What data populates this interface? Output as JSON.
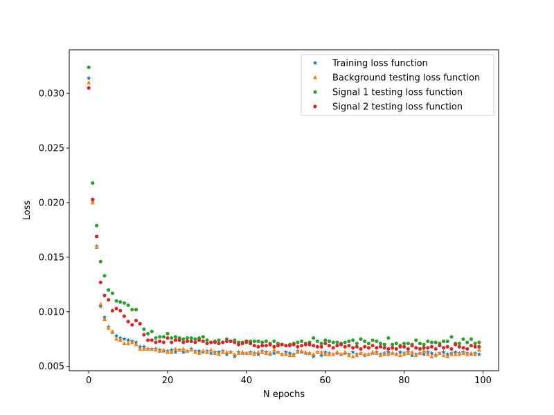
{
  "chart_data": {
    "type": "scatter",
    "xlabel": "N epochs",
    "ylabel": "Loss",
    "xlim": [
      -4.95,
      103.95
    ],
    "ylim": [
      0.0046,
      0.034
    ],
    "xticks": [
      0,
      20,
      40,
      60,
      80,
      100
    ],
    "xtick_labels": [
      "0",
      "20",
      "40",
      "60",
      "80",
      "100"
    ],
    "yticks": [
      0.005,
      0.01,
      0.015,
      0.02,
      0.025,
      0.03
    ],
    "ytick_labels": [
      "0.005",
      "0.010",
      "0.015",
      "0.020",
      "0.025",
      "0.030"
    ],
    "grid": false,
    "legend_position": "top-right",
    "x": [
      0,
      1,
      2,
      3,
      4,
      5,
      6,
      7,
      8,
      9,
      10,
      11,
      12,
      13,
      14,
      15,
      16,
      17,
      18,
      19,
      20,
      21,
      22,
      23,
      24,
      25,
      26,
      27,
      28,
      29,
      30,
      31,
      32,
      33,
      34,
      35,
      36,
      37,
      38,
      39,
      40,
      41,
      42,
      43,
      44,
      45,
      46,
      47,
      48,
      49,
      50,
      51,
      52,
      53,
      54,
      55,
      56,
      57,
      58,
      59,
      60,
      61,
      62,
      63,
      64,
      65,
      66,
      67,
      68,
      69,
      70,
      71,
      72,
      73,
      74,
      75,
      76,
      77,
      78,
      79,
      80,
      81,
      82,
      83,
      84,
      85,
      86,
      87,
      88,
      89,
      90,
      91,
      92,
      93,
      94,
      95,
      96,
      97,
      98,
      99
    ],
    "series": [
      {
        "name": "Training loss function",
        "marker": "star",
        "color": "#1f77b4",
        "values": [
          0.0314,
          0.0202,
          0.016,
          0.0105,
          0.0095,
          0.0086,
          0.0081,
          0.0078,
          0.0076,
          0.0075,
          0.0074,
          0.0073,
          0.0072,
          0.0068,
          0.0068,
          0.0066,
          0.0066,
          0.0066,
          0.0065,
          0.0064,
          0.0064,
          0.0065,
          0.0063,
          0.0065,
          0.0063,
          0.0064,
          0.0066,
          0.0064,
          0.0064,
          0.0063,
          0.0064,
          0.0062,
          0.0063,
          0.0063,
          0.0064,
          0.0061,
          0.0063,
          0.0059,
          0.0063,
          0.0062,
          0.0062,
          0.0063,
          0.0062,
          0.0061,
          0.0064,
          0.0063,
          0.0061,
          0.0062,
          0.0063,
          0.0061,
          0.0063,
          0.0062,
          0.0061,
          0.0064,
          0.0063,
          0.0062,
          0.0062,
          0.0059,
          0.0063,
          0.006,
          0.0063,
          0.0062,
          0.0061,
          0.0062,
          0.0061,
          0.0062,
          0.0061,
          0.0063,
          0.0061,
          0.0062,
          0.006,
          0.0061,
          0.0062,
          0.0063,
          0.0061,
          0.0062,
          0.0063,
          0.0062,
          0.0061,
          0.0063,
          0.0062,
          0.0063,
          0.006,
          0.0061,
          0.0062,
          0.0061,
          0.0063,
          0.0062,
          0.006,
          0.0062,
          0.0063,
          0.0061,
          0.0062,
          0.0063,
          0.0062,
          0.0063,
          0.0062,
          0.0061,
          0.0062,
          0.0061
        ]
      },
      {
        "name": "Background testing loss function",
        "marker": "triangle",
        "color": "#ff7f0e",
        "values": [
          0.031,
          0.02,
          0.0159,
          0.0107,
          0.0093,
          0.0085,
          0.0082,
          0.0075,
          0.0074,
          0.0071,
          0.0071,
          0.0072,
          0.007,
          0.0066,
          0.0066,
          0.0066,
          0.0066,
          0.0065,
          0.0064,
          0.0065,
          0.0063,
          0.0063,
          0.0066,
          0.0065,
          0.0066,
          0.0064,
          0.0065,
          0.0063,
          0.0062,
          0.0064,
          0.0063,
          0.0065,
          0.0062,
          0.0061,
          0.0063,
          0.0063,
          0.0063,
          0.0061,
          0.0062,
          0.0063,
          0.0062,
          0.0062,
          0.0061,
          0.0063,
          0.0063,
          0.0062,
          0.0062,
          0.0065,
          0.0063,
          0.0061,
          0.0061,
          0.006,
          0.006,
          0.0063,
          0.0064,
          0.0063,
          0.0062,
          0.0061,
          0.0063,
          0.0063,
          0.0061,
          0.0061,
          0.0061,
          0.0063,
          0.0061,
          0.0063,
          0.006,
          0.0059,
          0.006,
          0.0062,
          0.0061,
          0.0061,
          0.0063,
          0.0062,
          0.006,
          0.0061,
          0.0061,
          0.0062,
          0.0061,
          0.006,
          0.0061,
          0.0062,
          0.0063,
          0.006,
          0.0062,
          0.0064,
          0.0061,
          0.0059,
          0.0061,
          0.0062,
          0.006,
          0.0059,
          0.0061,
          0.0061,
          0.0061,
          0.0062,
          0.0061,
          0.0062,
          0.0061,
          0.0065
        ]
      },
      {
        "name": "Signal 1 testing loss function",
        "marker": "circle",
        "color": "#2ca02c",
        "values": [
          0.0324,
          0.0218,
          0.0179,
          0.0146,
          0.0133,
          0.012,
          0.0117,
          0.011,
          0.0109,
          0.0108,
          0.0106,
          0.0102,
          0.0102,
          0.0089,
          0.0084,
          0.008,
          0.0082,
          0.0076,
          0.0077,
          0.0077,
          0.008,
          0.0076,
          0.0077,
          0.0076,
          0.0075,
          0.0076,
          0.0076,
          0.0075,
          0.0076,
          0.0077,
          0.0074,
          0.0072,
          0.0073,
          0.0074,
          0.0072,
          0.0075,
          0.0073,
          0.0074,
          0.0072,
          0.0072,
          0.0072,
          0.0073,
          0.0073,
          0.0073,
          0.0072,
          0.0073,
          0.0071,
          0.0073,
          0.0071,
          0.007,
          0.0069,
          0.007,
          0.0071,
          0.0072,
          0.0073,
          0.0071,
          0.0072,
          0.0076,
          0.0073,
          0.0071,
          0.0074,
          0.0073,
          0.0072,
          0.0072,
          0.0071,
          0.0072,
          0.0073,
          0.0074,
          0.0071,
          0.0075,
          0.0073,
          0.0071,
          0.0074,
          0.0073,
          0.0071,
          0.007,
          0.0076,
          0.007,
          0.0071,
          0.0069,
          0.0071,
          0.0071,
          0.007,
          0.0074,
          0.0071,
          0.007,
          0.0073,
          0.0072,
          0.0072,
          0.0071,
          0.0073,
          0.0073,
          0.0077,
          0.0071,
          0.0071,
          0.0075,
          0.0072,
          0.0075,
          0.0071,
          0.0072
        ]
      },
      {
        "name": "Signal 2 testing loss function",
        "marker": "circle",
        "color": "#d62728",
        "values": [
          0.0305,
          0.0203,
          0.0169,
          0.0127,
          0.0115,
          0.0111,
          0.0101,
          0.0103,
          0.0101,
          0.0096,
          0.0091,
          0.0088,
          0.0092,
          0.0089,
          0.0079,
          0.0074,
          0.0074,
          0.0072,
          0.0073,
          0.0072,
          0.0076,
          0.0072,
          0.0074,
          0.0074,
          0.0072,
          0.0073,
          0.0073,
          0.0072,
          0.0074,
          0.0073,
          0.0071,
          0.0072,
          0.0072,
          0.0071,
          0.0072,
          0.0073,
          0.0073,
          0.0072,
          0.007,
          0.0071,
          0.0073,
          0.0071,
          0.0069,
          0.0068,
          0.0069,
          0.0069,
          0.007,
          0.0068,
          0.0069,
          0.007,
          0.0069,
          0.0069,
          0.007,
          0.0068,
          0.0069,
          0.007,
          0.007,
          0.0069,
          0.0068,
          0.0068,
          0.0071,
          0.0069,
          0.0067,
          0.0069,
          0.007,
          0.0068,
          0.0069,
          0.0067,
          0.0068,
          0.0066,
          0.0068,
          0.0067,
          0.0069,
          0.0067,
          0.0068,
          0.0067,
          0.0066,
          0.0067,
          0.0066,
          0.0068,
          0.0068,
          0.0066,
          0.0069,
          0.0067,
          0.0066,
          0.0067,
          0.0067,
          0.0068,
          0.0066,
          0.0069,
          0.0067,
          0.0068,
          0.0066,
          0.007,
          0.0068,
          0.0067,
          0.0066,
          0.0069,
          0.0068,
          0.0068
        ]
      }
    ]
  }
}
